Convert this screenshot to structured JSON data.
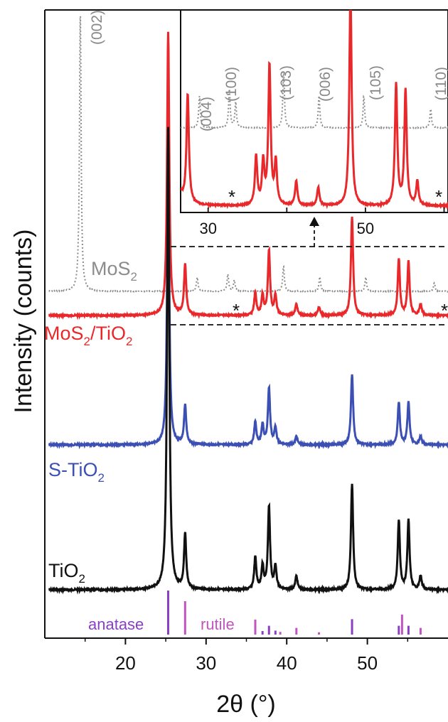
{
  "chart_data": {
    "type": "line",
    "xlabel": "2θ (°)",
    "ylabel": "Intensity (counts)",
    "xlim": [
      10,
      60
    ],
    "x_ticks": [
      "20",
      "30",
      "40",
      "50"
    ],
    "grid": false,
    "series": [
      {
        "name": "MoS2",
        "label_main": "MoS",
        "label_sub": "2",
        "color": "#8c8c8c",
        "style": "dotted",
        "peaks": [
          {
            "x": 14.4,
            "rel": 1.0
          },
          {
            "x": 28.9,
            "rel": 0.05
          },
          {
            "x": 32.7,
            "rel": 0.06
          },
          {
            "x": 33.5,
            "rel": 0.04
          },
          {
            "x": 39.6,
            "rel": 0.09
          },
          {
            "x": 44.1,
            "rel": 0.05
          },
          {
            "x": 49.8,
            "rel": 0.05
          },
          {
            "x": 58.3,
            "rel": 0.03
          }
        ]
      },
      {
        "name": "MoS2/TiO2",
        "label_parts": [
          "MoS",
          "2",
          "/TiO",
          "2"
        ],
        "color": "#e8282a",
        "style": "solid",
        "peaks": [
          {
            "x": 25.3,
            "rel": 1.0
          },
          {
            "x": 27.4,
            "rel": 0.18
          },
          {
            "x": 36.1,
            "rel": 0.08
          },
          {
            "x": 37.0,
            "rel": 0.07
          },
          {
            "x": 37.8,
            "rel": 0.23
          },
          {
            "x": 38.6,
            "rel": 0.07
          },
          {
            "x": 41.2,
            "rel": 0.04
          },
          {
            "x": 44.0,
            "rel": 0.03
          },
          {
            "x": 48.1,
            "rel": 0.35
          },
          {
            "x": 53.9,
            "rel": 0.2
          },
          {
            "x": 55.1,
            "rel": 0.19
          },
          {
            "x": 56.6,
            "rel": 0.04
          }
        ]
      },
      {
        "name": "S-TiO2",
        "label_main": "S-TiO",
        "label_sub": "2",
        "color": "#3c50b4",
        "style": "solid",
        "peaks": [
          {
            "x": 25.3,
            "rel": 1.0
          },
          {
            "x": 27.4,
            "rel": 0.14
          },
          {
            "x": 36.1,
            "rel": 0.08
          },
          {
            "x": 37.0,
            "rel": 0.07
          },
          {
            "x": 37.8,
            "rel": 0.2
          },
          {
            "x": 38.6,
            "rel": 0.06
          },
          {
            "x": 41.2,
            "rel": 0.03
          },
          {
            "x": 48.1,
            "rel": 0.25
          },
          {
            "x": 53.9,
            "rel": 0.15
          },
          {
            "x": 55.1,
            "rel": 0.15
          },
          {
            "x": 56.6,
            "rel": 0.03
          }
        ]
      },
      {
        "name": "TiO2",
        "label_main": "TiO",
        "label_sub": "2",
        "color": "#111111",
        "style": "solid",
        "peaks": [
          {
            "x": 25.3,
            "rel": 1.0
          },
          {
            "x": 27.4,
            "rel": 0.12
          },
          {
            "x": 36.1,
            "rel": 0.07
          },
          {
            "x": 37.0,
            "rel": 0.05
          },
          {
            "x": 37.8,
            "rel": 0.18
          },
          {
            "x": 38.6,
            "rel": 0.05
          },
          {
            "x": 41.2,
            "rel": 0.03
          },
          {
            "x": 48.1,
            "rel": 0.23
          },
          {
            "x": 53.9,
            "rel": 0.15
          },
          {
            "x": 55.1,
            "rel": 0.15
          },
          {
            "x": 56.6,
            "rel": 0.03
          }
        ]
      }
    ],
    "reference_patterns": [
      {
        "name": "anatase",
        "color": "#8a3fc4",
        "lines": [
          {
            "x": 25.3,
            "rel": 1.0
          },
          {
            "x": 37.0,
            "rel": 0.08
          },
          {
            "x": 37.8,
            "rel": 0.2
          },
          {
            "x": 38.6,
            "rel": 0.09
          },
          {
            "x": 48.1,
            "rel": 0.35
          },
          {
            "x": 53.9,
            "rel": 0.2
          },
          {
            "x": 55.1,
            "rel": 0.2
          }
        ]
      },
      {
        "name": "rutile",
        "color": "#c055c0",
        "lines": [
          {
            "x": 27.4,
            "rel": 1.0
          },
          {
            "x": 36.1,
            "rel": 0.45
          },
          {
            "x": 39.2,
            "rel": 0.08
          },
          {
            "x": 41.2,
            "rel": 0.2
          },
          {
            "x": 44.0,
            "rel": 0.07
          },
          {
            "x": 54.3,
            "rel": 0.6
          },
          {
            "x": 56.6,
            "rel": 0.2
          }
        ]
      }
    ],
    "inset": {
      "x_ticks": [
        "30",
        "50"
      ],
      "hkl_labels": [
        {
          "text": "(002)",
          "x": 14.4
        },
        {
          "text": "(004)",
          "x": 29.0
        },
        {
          "text": "(100)",
          "x": 32.7
        },
        {
          "text": "(103)",
          "x": 39.6
        },
        {
          "text": "(006)",
          "x": 44.1
        },
        {
          "text": "(105)",
          "x": 49.8
        },
        {
          "text": "(110)",
          "x": 58.3
        }
      ],
      "markers": [
        {
          "text": "*",
          "x": 33.0
        },
        {
          "text": "*",
          "x": 58.9
        }
      ]
    }
  }
}
